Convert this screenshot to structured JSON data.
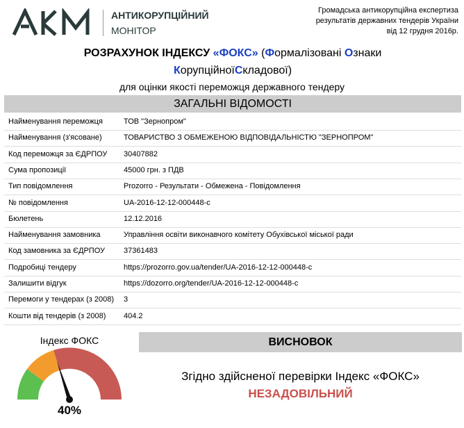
{
  "header": {
    "logo": "AKM",
    "org_line1": "АНТИКОРУПЦІЙНИЙ",
    "org_line2": "МОНІТОР",
    "note": [
      "Громадська антикорупційна експертиза",
      "результатів державних тендерів України",
      "від 12 грудня 2016р."
    ]
  },
  "title": {
    "main": "РОЗРАХУНОК ІНДЕКСУ",
    "brand": "«ФОКС»",
    "expansion": [
      {
        "text": "(",
        "accent": false
      },
      {
        "text": "Ф",
        "accent": true
      },
      {
        "text": "ормалізовані ",
        "accent": false
      },
      {
        "text": "О",
        "accent": true
      },
      {
        "text": "знаки ",
        "accent": false
      },
      {
        "text": "К",
        "accent": true
      },
      {
        "text": "орупційної",
        "accent": false
      },
      {
        "text": "С",
        "accent": true
      },
      {
        "text": "кладової)",
        "accent": false
      }
    ],
    "subtitle": "для оцінки якості переможця державного тендеру"
  },
  "section": "ЗАГАЛЬНІ ВІДОМОСТІ",
  "table": {
    "rows": [
      [
        "Найменування переможця",
        "ТОВ \"Зернопром\""
      ],
      [
        "Найменування (з'ясоване)",
        "ТОВАРИСТВО З ОБМЕЖЕНОЮ ВІДПОВІДАЛЬНІСТЮ \"ЗЕРНОПРОМ\""
      ],
      [
        "Код переможця за ЄДРПОУ",
        "30407882"
      ],
      [
        "Сума пропозиції",
        "45000 грн. з ПДВ"
      ],
      [
        "Тип повідомлення",
        "Prozorro - Результати - Обмежена - Повідомлення"
      ],
      [
        "№ повідомлення",
        "UA-2016-12-12-000448-c"
      ],
      [
        "Бюлетень",
        "12.12.2016"
      ],
      [
        "Найменування замовника",
        "Управління освіти виконавчого комітету Обухівської міської ради"
      ],
      [
        "Код замовника за ЄДРПОУ",
        "37361483"
      ],
      [
        "Подробиці тендеру",
        "https://prozorro.gov.ua/tender/UA-2016-12-12-000448-c"
      ],
      [
        "Залишити відгук",
        "https://dozorro.org/tender/UA-2016-12-12-000448-c"
      ],
      [
        "Перемоги у тендерах (з 2008)",
        "3"
      ],
      [
        "Кошти від тендерів (з 2008)",
        "404.2"
      ]
    ]
  },
  "gauge": {
    "title": "Індекс ФОКС",
    "value": 40,
    "label": "40%"
  },
  "conclusion": {
    "heading": "ВИСНОВОК",
    "text": "Згідно здійсненої перевірки Індекс «ФОКС»",
    "verdict": "НЕЗАДОВІЛЬНИЙ"
  }
}
